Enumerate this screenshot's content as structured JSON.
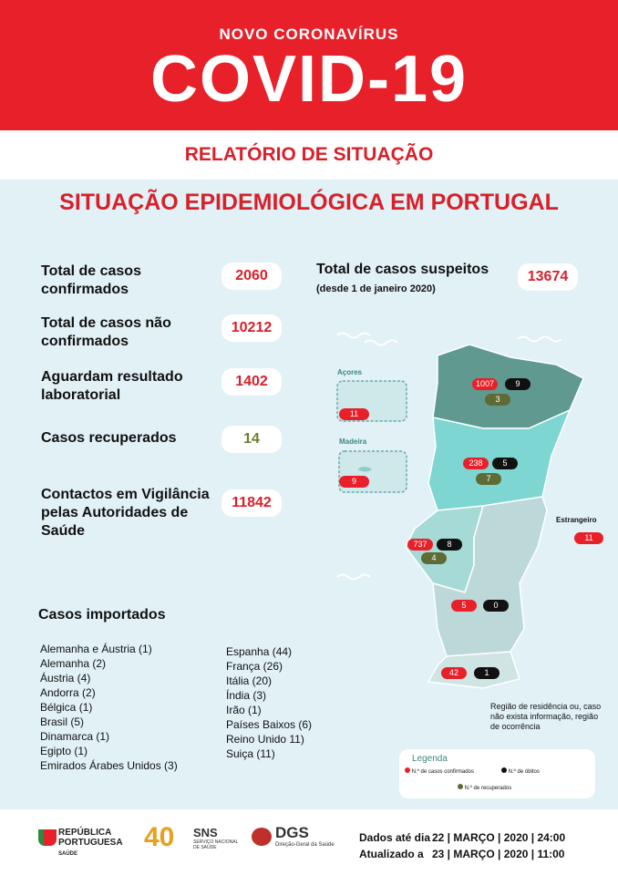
{
  "header": {
    "kicker": "NOVO CORONAVÍRUS",
    "title": "COVID-19",
    "subtitle": "RELATÓRIO DE SITUAÇÃO"
  },
  "section_title": "SITUAÇÃO EPIDEMIOLÓGICA EM PORTUGAL",
  "stats": [
    {
      "label": "Total de casos confirmados",
      "value": 2060
    },
    {
      "label": "Total de casos não confirmados",
      "value": 10212
    },
    {
      "label": "Aguardam resultado laboratorial",
      "value": 1402
    },
    {
      "label": "Casos recuperados",
      "value": 14
    },
    {
      "label": "Contactos em Vigilância pelas Autoridades de Saúde",
      "value": 11842
    }
  ],
  "suspect": {
    "label": "Total de casos suspeitos",
    "note": "(desde 1 de janeiro 2020)",
    "value": 13674
  },
  "imported": {
    "title": "Casos importados",
    "columns": [
      [
        "Alemanha e Áustria (1)",
        "Alemanha (2)",
        "Áustria (4)",
        "Andorra (2)",
        "Bélgica (1)",
        "Brasil (5)",
        "Dinamarca (1)",
        "Egipto (1)",
        "Emirados Árabes Unidos (3)"
      ],
      [
        "Espanha (44)",
        "França (26)",
        "Itália (20)",
        "Índia (3)",
        "Irão (1)",
        "Países Baixos (6)",
        "Reino Unido 11)",
        "Suiça (11)"
      ]
    ]
  },
  "map": {
    "regions": [
      {
        "confirmed": 1007,
        "deaths": 9,
        "recovered": 3
      },
      {
        "confirmed": 238,
        "deaths": 5,
        "recovered": 7
      },
      {
        "confirmed": 737,
        "deaths": 8,
        "recovered": 4
      },
      {
        "confirmed": 5,
        "deaths": 0
      },
      {
        "confirmed": 42,
        "deaths": 1
      }
    ],
    "azores": {
      "label": "Açores",
      "confirmed": 11
    },
    "madeira": {
      "label": "Madeira",
      "confirmed": 9
    },
    "abroad": {
      "label": "Estrangeiro",
      "confirmed": 11
    },
    "note": "Região de residência ou, caso não exista informação, região de ocorrência"
  },
  "legend": {
    "title": "Legenda",
    "items": [
      "N.º de casos confirmados",
      "N.º de óbitos",
      "N.º de recuperados"
    ]
  },
  "footer": {
    "logos": [
      "REPÚBLICA PORTUGUESA",
      "SAÚDE",
      "40",
      "SNS",
      "SERVIÇO NACIONAL DE SAÚDE",
      "DGS",
      "Direção-Geral da Saúde"
    ],
    "dates": [
      {
        "label": "Dados até dia",
        "value": "22 | MARÇO | 2020 | 24:00"
      },
      {
        "label": "Atualizado a",
        "value": "23 | MARÇO | 2020 | 11:00"
      }
    ]
  }
}
